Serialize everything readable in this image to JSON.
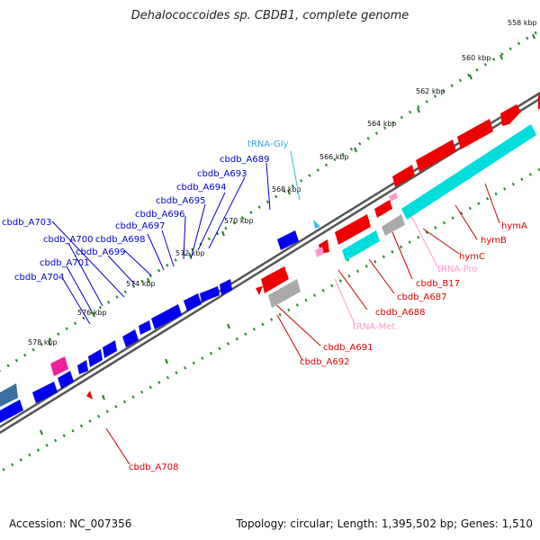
{
  "title": "Dehalococcoides sp. CBDB1, complete genome",
  "accession": "Accession: NC_007356",
  "summary": "Topology: circular; Length: 1,395,502 bp; Genes: 1,510",
  "colors": {
    "forward_strand": "#ff0000",
    "reverse_strand": "#0000ee",
    "rna_gene": "#00e0e0",
    "grey_feature": "#aaaaaa",
    "trna_label": "#ff99cc",
    "backbone": "#888888",
    "ticks": "#228b22"
  },
  "ruler_labels": [
    "558 kbp",
    "560 kbp",
    "562 kbp",
    "564 kbp",
    "566 kbp",
    "568 kbp",
    "570 kbp",
    "572 kbp",
    "574 kbp",
    "576 kbp",
    "578 kbp"
  ],
  "gene_labels": {
    "trna_gly": "tRNA-Gly",
    "a689": "cbdb_A689",
    "a693": "cbdb_A693",
    "a694": "cbdb_A694",
    "a695": "cbdb_A695",
    "a696": "cbdb_A696",
    "a697": "cbdb_A697",
    "a698": "cbdb_A698",
    "a699": "cbdb_A699",
    "a700": "cbdb_A700",
    "a701": "cbdb_A701",
    "a703": "cbdb_A703",
    "a704": "cbdb_A704",
    "hymA": "hymA",
    "hymB": "hymB",
    "hymC": "hymC",
    "trna_pro": "tRNA-Pro",
    "b17": "cbdb_B17",
    "a687": "cbdb_A687",
    "a688": "cbdb_A688",
    "trna_met": "tRNA-Met",
    "a691": "cbdb_A691",
    "a692": "cbdb_A692",
    "a708": "cbdb_A708"
  }
}
